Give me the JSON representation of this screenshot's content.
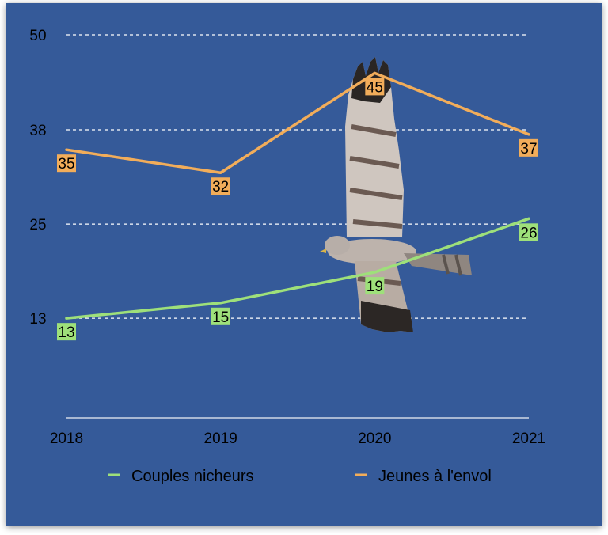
{
  "chart_data": {
    "type": "line",
    "title": "",
    "xlabel": "",
    "ylabel": "",
    "categories": [
      "2018",
      "2019",
      "2020",
      "2021"
    ],
    "y_ticks": [
      "13",
      "25",
      "38",
      "50"
    ],
    "y_tick_values": [
      13,
      25.3,
      37.6,
      50
    ],
    "ylim": [
      0,
      50
    ],
    "grid": "dashed horizontal",
    "legend_position": "bottom",
    "series": [
      {
        "name": "Couples nicheurs",
        "values": [
          13,
          15,
          19,
          26
        ],
        "labels": [
          "13",
          "15",
          "19",
          "26"
        ],
        "color": "#9ee07a"
      },
      {
        "name": "Jeunes à l'envol",
        "values": [
          35,
          32,
          45,
          37
        ],
        "labels": [
          "35",
          "32",
          "45",
          "37"
        ],
        "color": "#f2ad5a"
      }
    ],
    "colors": {
      "background": "#355a99",
      "grid": "#ffffff",
      "axis": "#d0d7e6"
    },
    "image": {
      "icon": "harrier-bird-icon"
    }
  }
}
